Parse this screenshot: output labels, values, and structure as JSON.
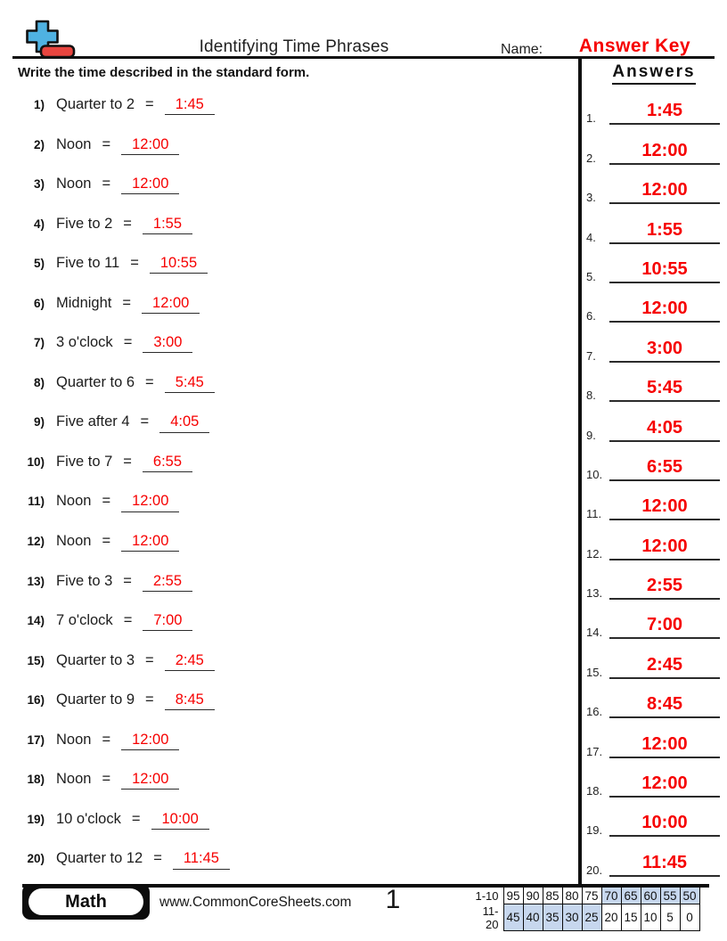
{
  "header": {
    "title": "Identifying Time Phrases",
    "name_label": "Name:",
    "name_value": "Answer Key",
    "instruction": "Write the time described in the standard form.",
    "answers_heading": "Answers"
  },
  "questions": [
    {
      "num": "1)",
      "phrase": "Quarter to 2",
      "eq": "=",
      "answer": "1:45"
    },
    {
      "num": "2)",
      "phrase": "Noon",
      "eq": "=",
      "answer": "12:00"
    },
    {
      "num": "3)",
      "phrase": "Noon",
      "eq": "=",
      "answer": "12:00"
    },
    {
      "num": "4)",
      "phrase": "Five to 2",
      "eq": "=",
      "answer": "1:55"
    },
    {
      "num": "5)",
      "phrase": "Five to 11",
      "eq": "=",
      "answer": "10:55"
    },
    {
      "num": "6)",
      "phrase": "Midnight",
      "eq": "=",
      "answer": "12:00"
    },
    {
      "num": "7)",
      "phrase": "3 o'clock",
      "eq": "=",
      "answer": "3:00"
    },
    {
      "num": "8)",
      "phrase": "Quarter to 6",
      "eq": "=",
      "answer": "5:45"
    },
    {
      "num": "9)",
      "phrase": "Five after 4",
      "eq": "=",
      "answer": "4:05"
    },
    {
      "num": "10)",
      "phrase": "Five to 7",
      "eq": "=",
      "answer": "6:55"
    },
    {
      "num": "11)",
      "phrase": "Noon",
      "eq": "=",
      "answer": "12:00"
    },
    {
      "num": "12)",
      "phrase": "Noon",
      "eq": "=",
      "answer": "12:00"
    },
    {
      "num": "13)",
      "phrase": "Five to 3",
      "eq": "=",
      "answer": "2:55"
    },
    {
      "num": "14)",
      "phrase": "7 o'clock",
      "eq": "=",
      "answer": "7:00"
    },
    {
      "num": "15)",
      "phrase": "Quarter to 3",
      "eq": "=",
      "answer": "2:45"
    },
    {
      "num": "16)",
      "phrase": "Quarter to 9",
      "eq": "=",
      "answer": "8:45"
    },
    {
      "num": "17)",
      "phrase": "Noon",
      "eq": "=",
      "answer": "12:00"
    },
    {
      "num": "18)",
      "phrase": "Noon",
      "eq": "=",
      "answer": "12:00"
    },
    {
      "num": "19)",
      "phrase": "10 o'clock",
      "eq": "=",
      "answer": "10:00"
    },
    {
      "num": "20)",
      "phrase": "Quarter to 12",
      "eq": "=",
      "answer": "11:45"
    }
  ],
  "answer_column": [
    {
      "num": "1.",
      "value": "1:45"
    },
    {
      "num": "2.",
      "value": "12:00"
    },
    {
      "num": "3.",
      "value": "12:00"
    },
    {
      "num": "4.",
      "value": "1:55"
    },
    {
      "num": "5.",
      "value": "10:55"
    },
    {
      "num": "6.",
      "value": "12:00"
    },
    {
      "num": "7.",
      "value": "3:00"
    },
    {
      "num": "8.",
      "value": "5:45"
    },
    {
      "num": "9.",
      "value": "4:05"
    },
    {
      "num": "10.",
      "value": "6:55"
    },
    {
      "num": "11.",
      "value": "12:00"
    },
    {
      "num": "12.",
      "value": "12:00"
    },
    {
      "num": "13.",
      "value": "2:55"
    },
    {
      "num": "14.",
      "value": "7:00"
    },
    {
      "num": "15.",
      "value": "2:45"
    },
    {
      "num": "16.",
      "value": "8:45"
    },
    {
      "num": "17.",
      "value": "12:00"
    },
    {
      "num": "18.",
      "value": "12:00"
    },
    {
      "num": "19.",
      "value": "10:00"
    },
    {
      "num": "20.",
      "value": "11:45"
    }
  ],
  "footer": {
    "subject_badge": "Math",
    "website": "www.CommonCoreSheets.com",
    "page_number": "1",
    "score_rows": [
      {
        "label": "1-10",
        "cells": [
          {
            "v": "95",
            "hl": false
          },
          {
            "v": "90",
            "hl": false
          },
          {
            "v": "85",
            "hl": false
          },
          {
            "v": "80",
            "hl": false
          },
          {
            "v": "75",
            "hl": false
          },
          {
            "v": "70",
            "hl": true
          },
          {
            "v": "65",
            "hl": true
          },
          {
            "v": "60",
            "hl": true
          },
          {
            "v": "55",
            "hl": true
          },
          {
            "v": "50",
            "hl": true
          }
        ]
      },
      {
        "label": "11-20",
        "cells": [
          {
            "v": "45",
            "hl": true
          },
          {
            "v": "40",
            "hl": true
          },
          {
            "v": "35",
            "hl": true
          },
          {
            "v": "30",
            "hl": true
          },
          {
            "v": "25",
            "hl": true
          },
          {
            "v": "20",
            "hl": false
          },
          {
            "v": "15",
            "hl": false
          },
          {
            "v": "10",
            "hl": false
          },
          {
            "v": "5",
            "hl": false
          },
          {
            "v": "0",
            "hl": false
          }
        ]
      }
    ]
  },
  "colors": {
    "answer_red": "#f60000",
    "score_cell_blue": "#c7d7ee",
    "logo_blue": "#4fb2e2",
    "logo_red": "#e8453f"
  }
}
